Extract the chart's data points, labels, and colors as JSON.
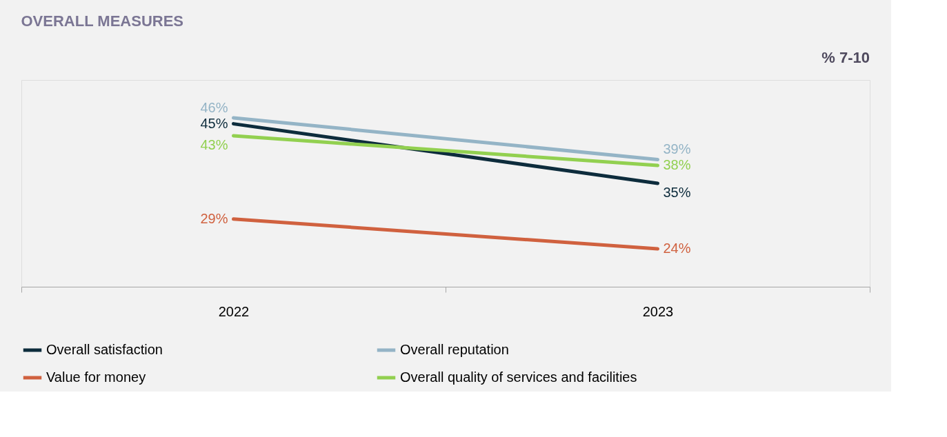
{
  "chart_data": {
    "type": "line",
    "title": "OVERALL MEASURES",
    "subtitle": "% 7-10",
    "categories": [
      "2022",
      "2023"
    ],
    "series": [
      {
        "name": "Overall satisfaction",
        "color": "#0d2c3c",
        "values": [
          45,
          35
        ],
        "value_labels": [
          "45%",
          "35%"
        ]
      },
      {
        "name": "Overall reputation",
        "color": "#94b4c6",
        "values": [
          46,
          39
        ],
        "value_labels": [
          "46%",
          "39%"
        ]
      },
      {
        "name": "Value for money",
        "color": "#d0613f",
        "values": [
          29,
          24
        ],
        "value_labels": [
          "29%",
          "24%"
        ]
      },
      {
        "name": "Overall quality of services and facilities",
        "color": "#92d050",
        "values": [
          43,
          38
        ],
        "value_labels": [
          "43%",
          "38%"
        ]
      }
    ],
    "legend": "bottom",
    "grid": false,
    "marker": "none",
    "line_style": "solid"
  }
}
